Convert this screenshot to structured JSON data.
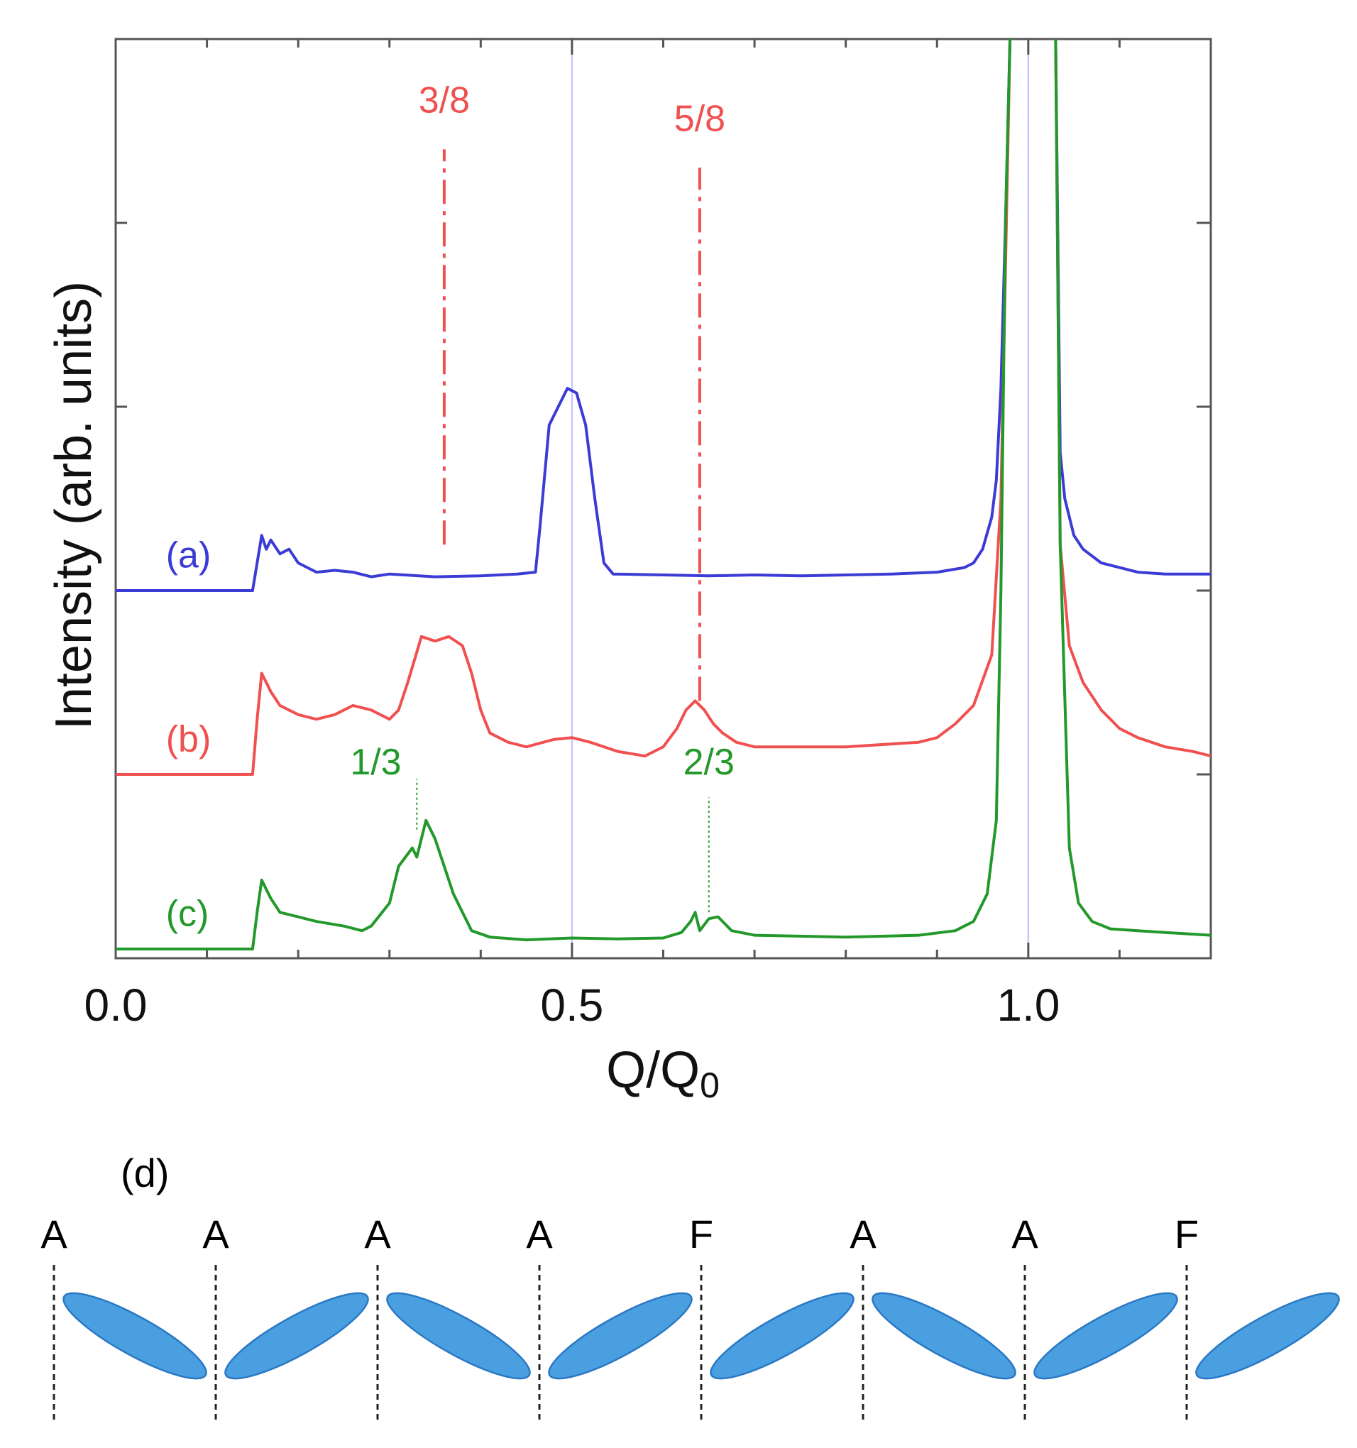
{
  "colors": {
    "blue": "#3b3bd6",
    "red": "#f05050",
    "green": "#22992a",
    "guide": "#c8c8ff",
    "molecule": "#4a9fe0",
    "molecule_edge": "#2a78c4"
  },
  "chart_data": {
    "type": "line",
    "xlabel": "Q/Q",
    "xlabel_subscript": "0",
    "ylabel": "Intensity (arb. units)",
    "xlim": [
      0.0,
      1.2
    ],
    "ylim": [
      0,
      100
    ],
    "x_ticks": [
      0.0,
      0.5,
      1.0
    ],
    "x_tick_labels": [
      "0.0",
      "0.5",
      "1.0"
    ],
    "x_minor_step": 0.1,
    "y_ticks": [
      20,
      40,
      60,
      80
    ],
    "guide_lines_x": [
      0.5,
      1.0
    ],
    "series": [
      {
        "name": "(a)",
        "color_key": "blue",
        "points": [
          [
            0.0,
            40
          ],
          [
            0.15,
            40
          ],
          [
            0.155,
            43
          ],
          [
            0.16,
            46
          ],
          [
            0.165,
            44.5
          ],
          [
            0.17,
            45.5
          ],
          [
            0.18,
            44
          ],
          [
            0.19,
            44.5
          ],
          [
            0.2,
            43
          ],
          [
            0.21,
            42.5
          ],
          [
            0.22,
            42
          ],
          [
            0.24,
            42.2
          ],
          [
            0.26,
            42
          ],
          [
            0.28,
            41.5
          ],
          [
            0.3,
            41.8
          ],
          [
            0.35,
            41.5
          ],
          [
            0.4,
            41.6
          ],
          [
            0.44,
            41.8
          ],
          [
            0.46,
            42
          ],
          [
            0.465,
            47
          ],
          [
            0.475,
            58
          ],
          [
            0.485,
            60
          ],
          [
            0.495,
            62
          ],
          [
            0.505,
            61.5
          ],
          [
            0.515,
            58
          ],
          [
            0.525,
            50
          ],
          [
            0.535,
            43
          ],
          [
            0.545,
            41.8
          ],
          [
            0.6,
            41.7
          ],
          [
            0.65,
            41.6
          ],
          [
            0.7,
            41.7
          ],
          [
            0.75,
            41.6
          ],
          [
            0.8,
            41.7
          ],
          [
            0.85,
            41.8
          ],
          [
            0.9,
            42
          ],
          [
            0.93,
            42.5
          ],
          [
            0.94,
            43
          ],
          [
            0.95,
            44.5
          ],
          [
            0.96,
            48
          ],
          [
            0.965,
            52
          ],
          [
            0.97,
            62
          ],
          [
            0.975,
            80
          ],
          [
            0.98,
            100
          ]
        ]
      },
      {
        "name": "(a) right",
        "color_key": "blue",
        "points": [
          [
            1.03,
            100
          ],
          [
            1.035,
            55
          ],
          [
            1.04,
            50
          ],
          [
            1.05,
            46
          ],
          [
            1.06,
            44.5
          ],
          [
            1.08,
            43
          ],
          [
            1.1,
            42.5
          ],
          [
            1.12,
            42
          ],
          [
            1.15,
            41.8
          ],
          [
            1.2,
            41.8
          ]
        ]
      },
      {
        "name": "(b)",
        "color_key": "red",
        "points": [
          [
            0.0,
            20
          ],
          [
            0.15,
            20
          ],
          [
            0.155,
            26
          ],
          [
            0.16,
            31
          ],
          [
            0.17,
            29
          ],
          [
            0.18,
            27.5
          ],
          [
            0.2,
            26.5
          ],
          [
            0.22,
            26
          ],
          [
            0.24,
            26.5
          ],
          [
            0.26,
            27.5
          ],
          [
            0.28,
            27
          ],
          [
            0.3,
            26
          ],
          [
            0.31,
            27
          ],
          [
            0.32,
            30
          ],
          [
            0.335,
            35
          ],
          [
            0.35,
            34.5
          ],
          [
            0.365,
            35
          ],
          [
            0.38,
            34
          ],
          [
            0.39,
            31
          ],
          [
            0.4,
            27
          ],
          [
            0.41,
            24.5
          ],
          [
            0.43,
            23.5
          ],
          [
            0.45,
            23
          ],
          [
            0.48,
            23.8
          ],
          [
            0.5,
            24
          ],
          [
            0.52,
            23.5
          ],
          [
            0.55,
            22.5
          ],
          [
            0.58,
            22
          ],
          [
            0.6,
            23
          ],
          [
            0.615,
            25
          ],
          [
            0.625,
            27
          ],
          [
            0.635,
            28
          ],
          [
            0.645,
            27
          ],
          [
            0.655,
            25.5
          ],
          [
            0.665,
            24.5
          ],
          [
            0.68,
            23.5
          ],
          [
            0.7,
            23
          ],
          [
            0.8,
            23
          ],
          [
            0.88,
            23.5
          ],
          [
            0.9,
            24
          ],
          [
            0.92,
            25.5
          ],
          [
            0.94,
            27.5
          ],
          [
            0.96,
            33
          ],
          [
            0.97,
            50
          ],
          [
            0.975,
            75
          ],
          [
            0.98,
            100
          ]
        ]
      },
      {
        "name": "(b) right",
        "color_key": "red",
        "points": [
          [
            1.03,
            100
          ],
          [
            1.035,
            45
          ],
          [
            1.045,
            34
          ],
          [
            1.06,
            30
          ],
          [
            1.08,
            27
          ],
          [
            1.1,
            25
          ],
          [
            1.12,
            24
          ],
          [
            1.15,
            23
          ],
          [
            1.18,
            22.5
          ],
          [
            1.2,
            22
          ]
        ]
      },
      {
        "name": "(c)",
        "color_key": "green",
        "points": [
          [
            0.0,
            1
          ],
          [
            0.15,
            1
          ],
          [
            0.155,
            5
          ],
          [
            0.16,
            8.5
          ],
          [
            0.17,
            6.5
          ],
          [
            0.18,
            5
          ],
          [
            0.2,
            4.5
          ],
          [
            0.22,
            4
          ],
          [
            0.25,
            3.5
          ],
          [
            0.27,
            3
          ],
          [
            0.28,
            3.5
          ],
          [
            0.3,
            6
          ],
          [
            0.31,
            10
          ],
          [
            0.325,
            12
          ],
          [
            0.33,
            11
          ],
          [
            0.34,
            15
          ],
          [
            0.35,
            13
          ],
          [
            0.36,
            10
          ],
          [
            0.37,
            7
          ],
          [
            0.38,
            5
          ],
          [
            0.39,
            3
          ],
          [
            0.41,
            2.3
          ],
          [
            0.45,
            2
          ],
          [
            0.5,
            2.2
          ],
          [
            0.55,
            2.1
          ],
          [
            0.6,
            2.2
          ],
          [
            0.62,
            2.8
          ],
          [
            0.63,
            4
          ],
          [
            0.635,
            5
          ],
          [
            0.64,
            3
          ],
          [
            0.65,
            4.3
          ],
          [
            0.66,
            4.5
          ],
          [
            0.675,
            3
          ],
          [
            0.7,
            2.5
          ],
          [
            0.8,
            2.3
          ],
          [
            0.88,
            2.5
          ],
          [
            0.92,
            3
          ],
          [
            0.94,
            4
          ],
          [
            0.955,
            7
          ],
          [
            0.965,
            15
          ],
          [
            0.97,
            40
          ],
          [
            0.975,
            80
          ],
          [
            0.98,
            100
          ]
        ]
      },
      {
        "name": "(c) right",
        "color_key": "green",
        "points": [
          [
            1.03,
            100
          ],
          [
            1.035,
            45
          ],
          [
            1.045,
            12
          ],
          [
            1.055,
            6
          ],
          [
            1.07,
            4
          ],
          [
            1.09,
            3.2
          ],
          [
            1.12,
            3
          ],
          [
            1.15,
            2.8
          ],
          [
            1.2,
            2.5
          ]
        ]
      }
    ],
    "curve_labels": [
      {
        "text": "(a)",
        "color_key": "blue",
        "x": 0.055,
        "y": 42.5
      },
      {
        "text": "(b)",
        "color_key": "red",
        "x": 0.055,
        "y": 22.5
      },
      {
        "text": "(c)",
        "color_key": "green",
        "x": 0.055,
        "y": 3.5
      }
    ],
    "annotations": [
      {
        "text": "3/8",
        "color_key": "red",
        "x": 0.36,
        "y": 92,
        "line_x": 0.36,
        "line_from": 45,
        "line_to": 88,
        "style": "dashdot"
      },
      {
        "text": "5/8",
        "color_key": "red",
        "x": 0.64,
        "y": 90,
        "line_x": 0.64,
        "line_from": 28,
        "line_to": 86,
        "style": "dashdot"
      },
      {
        "text": "1/3",
        "color_key": "green",
        "x": 0.285,
        "y": 20,
        "line_x": 0.33,
        "line_from": 14,
        "line_to": 19.5,
        "style": "dotted"
      },
      {
        "text": "2/3",
        "color_key": "green",
        "x": 0.65,
        "y": 20,
        "line_x": 0.65,
        "line_from": 5,
        "line_to": 17.5,
        "style": "dotted"
      }
    ]
  },
  "diagram": {
    "panel_label": "(d)",
    "letters": [
      "A",
      "A",
      "A",
      "A",
      "F",
      "A",
      "A",
      "F"
    ],
    "molecule_tilts": [
      "down",
      "up",
      "down",
      "up",
      "up",
      "down",
      "up",
      "up"
    ]
  }
}
